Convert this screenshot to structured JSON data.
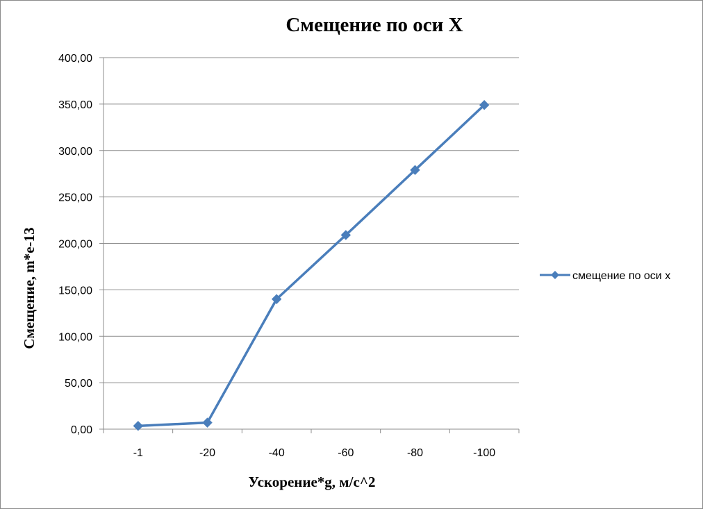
{
  "chart_data": {
    "type": "line",
    "title": "Смещение по оси X",
    "xlabel": "Ускорение*g, м/с^2",
    "ylabel": "Смещение, m*e-13",
    "categories": [
      "-1",
      "-20",
      "-40",
      "-60",
      "-80",
      "-100"
    ],
    "series": [
      {
        "name": "смещение по оси x",
        "values": [
          3.5,
          7.0,
          140.0,
          209.0,
          279.0,
          349.0
        ],
        "color": "#4a7ebb",
        "marker": "diamond"
      }
    ],
    "ylim": [
      0,
      400
    ],
    "y_step": 50,
    "y_tick_labels": [
      "0,00",
      "50,00",
      "100,00",
      "150,00",
      "200,00",
      "250,00",
      "300,00",
      "350,00",
      "400,00"
    ],
    "grid": "horizontal",
    "legend_position": "right"
  }
}
